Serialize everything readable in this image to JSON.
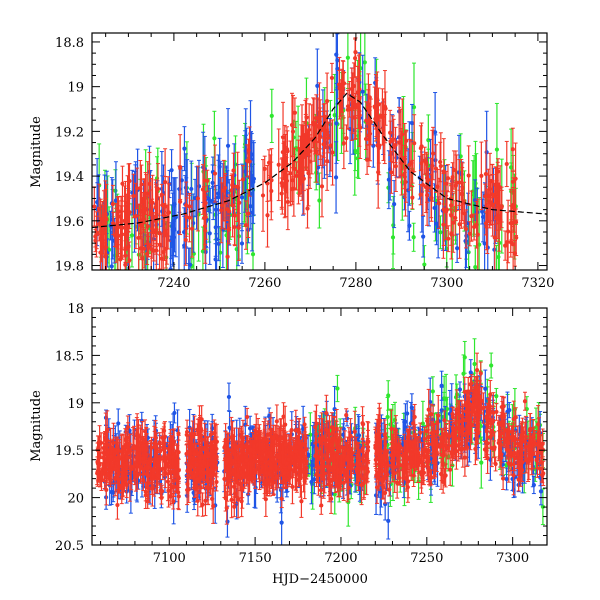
{
  "chart_data": [
    {
      "type": "scatter",
      "id": "top",
      "title": "",
      "xlabel": "",
      "ylabel": "Magnitude",
      "xlim": [
        7222,
        7322
      ],
      "ylim": [
        19.82,
        18.76
      ],
      "y_inverted": true,
      "x_ticks": [
        7240,
        7260,
        7280,
        7300,
        7320
      ],
      "x_tick_labels": [
        "7240",
        "7260",
        "7280",
        "7300",
        "7320"
      ],
      "y_ticks": [
        18.8,
        19.0,
        19.2,
        19.4,
        19.6,
        19.8
      ],
      "y_tick_labels": [
        "18.8",
        "19",
        "19.2",
        "19.4",
        "19.6",
        "19.8"
      ],
      "model_curve": {
        "name": "model",
        "color": "#000000",
        "x": [
          7222,
          7232,
          7242,
          7252,
          7260,
          7266,
          7271,
          7275,
          7278,
          7281,
          7286,
          7292,
          7300,
          7310,
          7322
        ],
        "y": [
          19.63,
          19.61,
          19.57,
          19.51,
          19.43,
          19.34,
          19.23,
          19.1,
          19.03,
          19.07,
          19.22,
          19.38,
          19.5,
          19.55,
          19.57
        ]
      },
      "series": [
        {
          "name": "green",
          "color": "#2ee62e",
          "segments": [
            {
              "x0": 7222,
              "x1": 7240,
              "n": 28
            },
            {
              "x0": 7242,
              "x1": 7262,
              "n": 28
            },
            {
              "x0": 7266,
              "x1": 7316,
              "n": 70
            }
          ],
          "base_offset": 0.04,
          "scatter": 0.14,
          "error": 0.12
        },
        {
          "name": "blue",
          "color": "#1f55e6",
          "segments": [
            {
              "x0": 7222,
              "x1": 7238,
              "n": 35
            },
            {
              "x0": 7239,
              "x1": 7258,
              "n": 80
            },
            {
              "x0": 7268,
              "x1": 7312,
              "n": 70
            }
          ],
          "base_offset": 0.0,
          "scatter": 0.12,
          "error": 0.11
        },
        {
          "name": "red",
          "color": "#f2392a",
          "segments": [
            {
              "x0": 7222,
              "x1": 7239,
              "n": 110
            },
            {
              "x0": 7241,
              "x1": 7262,
              "n": 50
            },
            {
              "x0": 7263,
              "x1": 7275,
              "n": 80
            },
            {
              "x0": 7276,
              "x1": 7281,
              "n": 30
            },
            {
              "x0": 7282,
              "x1": 7316,
              "n": 150
            }
          ],
          "base_offset": 0.0,
          "scatter": 0.1,
          "error": 0.09
        }
      ]
    },
    {
      "type": "scatter",
      "id": "bottom",
      "title": "",
      "xlabel": "HJD−2450000",
      "ylabel": "Magnitude",
      "xlim": [
        7055,
        7320
      ],
      "ylim": [
        20.5,
        18.0
      ],
      "y_inverted": true,
      "x_ticks": [
        7100,
        7150,
        7200,
        7250,
        7300
      ],
      "x_tick_labels": [
        "7100",
        "7150",
        "7200",
        "7250",
        "7300"
      ],
      "y_ticks": [
        18.0,
        18.5,
        19.0,
        19.5,
        20.0,
        20.5
      ],
      "y_tick_labels": [
        "18",
        "18.5",
        "19",
        "19.5",
        "20",
        "20.5"
      ],
      "series": [
        {
          "name": "green",
          "color": "#2ee62e",
          "segments": [
            {
              "x0": 7180,
              "x1": 7215,
              "n": 60
            },
            {
              "x0": 7222,
              "x1": 7318,
              "n": 110
            }
          ],
          "base_offset": -0.05,
          "scatter": 0.25,
          "error": 0.15
        },
        {
          "name": "blue",
          "color": "#1f55e6",
          "segments": [
            {
              "x0": 7062,
              "x1": 7106,
              "n": 90
            },
            {
              "x0": 7110,
              "x1": 7128,
              "n": 55
            },
            {
              "x0": 7132,
              "x1": 7215,
              "n": 170
            },
            {
              "x0": 7220,
              "x1": 7318,
              "n": 170
            }
          ],
          "base_offset": 0.0,
          "scatter": 0.2,
          "error": 0.14
        },
        {
          "name": "red",
          "color": "#f2392a",
          "segments": [
            {
              "x0": 7058,
              "x1": 7106,
              "n": 260
            },
            {
              "x0": 7110,
              "x1": 7128,
              "n": 130
            },
            {
              "x0": 7132,
              "x1": 7180,
              "n": 320
            },
            {
              "x0": 7185,
              "x1": 7216,
              "n": 150
            },
            {
              "x0": 7220,
              "x1": 7318,
              "n": 380
            }
          ],
          "base_offset": 0.0,
          "scatter": 0.17,
          "error": 0.12
        }
      ],
      "baseline_curve": {
        "x": [
          7055,
          7150,
          7220,
          7250,
          7262,
          7268,
          7272,
          7276,
          7279,
          7283,
          7290,
          7300,
          7320
        ],
        "y": [
          19.62,
          19.6,
          19.58,
          19.52,
          19.42,
          19.28,
          19.18,
          19.08,
          19.06,
          19.14,
          19.34,
          19.48,
          19.56
        ]
      }
    }
  ]
}
